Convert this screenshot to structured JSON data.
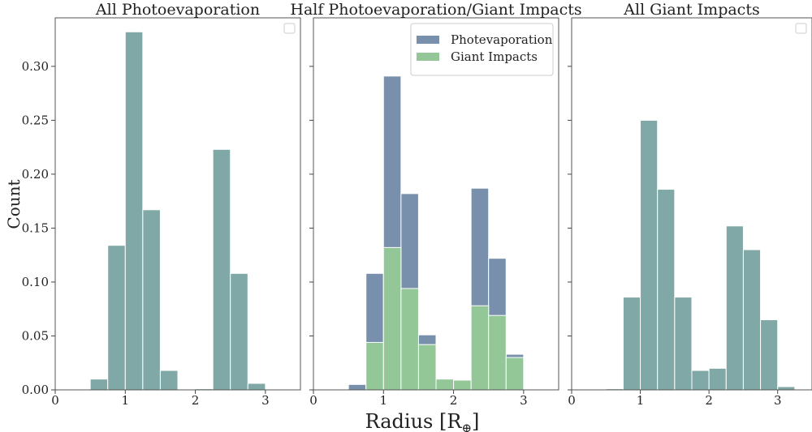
{
  "figure": {
    "ylabel": "Count",
    "xlabel": "Radius [R",
    "xlabel_symbol": "⊕",
    "xlabel_close": "]"
  },
  "chart_data": [
    {
      "type": "bar",
      "title": "All Photoevaporation",
      "xlabel": "",
      "ylabel": "Count",
      "xlim": [
        0,
        3.5
      ],
      "ylim": [
        0,
        0.345
      ],
      "xticks": [
        "0",
        "1",
        "2",
        "3"
      ],
      "yticks": [
        "0.00",
        "0.05",
        "0.10",
        "0.15",
        "0.20",
        "0.25",
        "0.30"
      ],
      "bin_edges": [
        0.5,
        0.75,
        1.0,
        1.25,
        1.5,
        1.75,
        2.0,
        2.25,
        2.5,
        2.75,
        3.0,
        3.25
      ],
      "series": [
        {
          "color": "#7fa8a6",
          "values": [
            0.01,
            0.134,
            0.332,
            0.167,
            0.018,
            0,
            0.001,
            0.223,
            0.108,
            0.006,
            0
          ]
        }
      ],
      "legend": {
        "position": "top-right",
        "entries": []
      }
    },
    {
      "type": "bar",
      "title": "Half Photoevaporation/Giant Impacts",
      "xlabel": "",
      "ylabel": "",
      "xlim": [
        0,
        3.5
      ],
      "ylim": [
        0,
        0.345
      ],
      "xticks": [
        "0",
        "1",
        "2",
        "3"
      ],
      "yticks": [],
      "bin_edges": [
        0.5,
        0.75,
        1.0,
        1.25,
        1.5,
        1.75,
        2.0,
        2.25,
        2.5,
        2.75,
        3.0,
        3.25
      ],
      "series": [
        {
          "name": "Photevaporation",
          "color": "#7890ab",
          "values": [
            0.005,
            0.108,
            0.291,
            0.182,
            0.051,
            0,
            0,
            0.187,
            0.122,
            0.033,
            0
          ]
        },
        {
          "name": "Giant Impacts",
          "color": "#93c797",
          "values": [
            0,
            0.044,
            0.132,
            0.094,
            0.042,
            0.01,
            0.009,
            0.078,
            0.069,
            0.03,
            0
          ]
        }
      ],
      "legend": {
        "position": "top-right",
        "entries": [
          "Photevaporation",
          "Giant Impacts"
        ]
      }
    },
    {
      "type": "bar",
      "title": "All Giant Impacts",
      "xlabel": "",
      "ylabel": "",
      "xlim": [
        0,
        3.5
      ],
      "ylim": [
        0,
        0.345
      ],
      "xticks": [
        "0",
        "1",
        "2",
        "3"
      ],
      "yticks": [],
      "bin_edges": [
        0.5,
        0.75,
        1.0,
        1.25,
        1.5,
        1.75,
        2.0,
        2.25,
        2.5,
        2.75,
        3.0,
        3.25
      ],
      "series": [
        {
          "color": "#7fa8a6",
          "values": [
            0.001,
            0.086,
            0.25,
            0.186,
            0.086,
            0.018,
            0.02,
            0.152,
            0.13,
            0.065,
            0.003
          ]
        }
      ],
      "legend": {
        "position": "top-right",
        "entries": []
      }
    }
  ]
}
